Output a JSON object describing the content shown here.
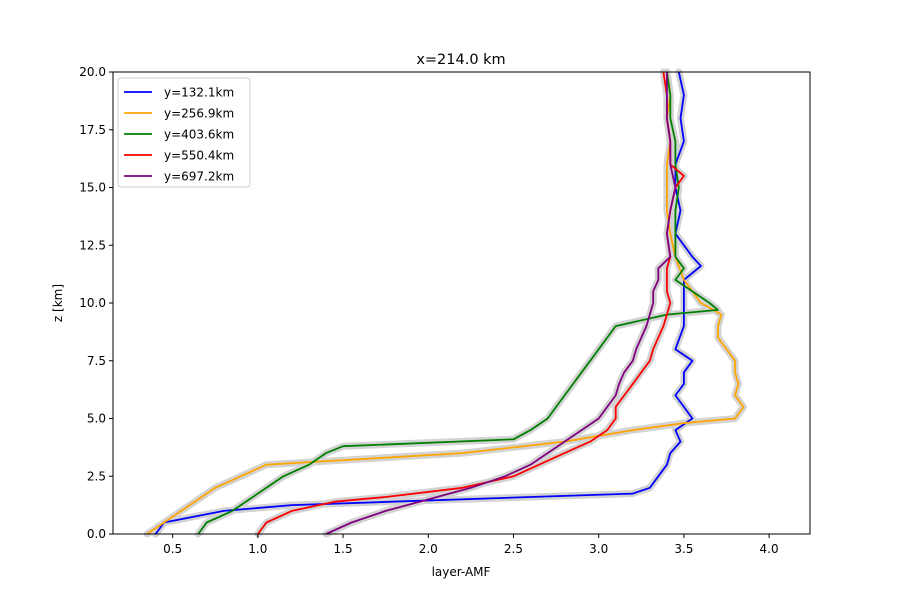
{
  "chart_data": {
    "type": "line",
    "title": "x=214.0 km",
    "xlabel": "layer-AMF",
    "ylabel": "z [km]",
    "xlim": [
      0.15,
      4.24
    ],
    "ylim": [
      0,
      20
    ],
    "xticks": [
      "0.5",
      "1.0",
      "1.5",
      "2.0",
      "2.5",
      "3.0",
      "3.5",
      "4.0"
    ],
    "yticks": [
      "0.0",
      "2.5",
      "5.0",
      "7.5",
      "10.0",
      "12.5",
      "15.0",
      "17.5",
      "20.0"
    ],
    "grid": false,
    "legend_position": "upper-left",
    "uncertainty_band": "lightgray",
    "series": [
      {
        "name": "y=132.1km",
        "color": "#0000ff",
        "z": [
          0.0,
          0.5,
          1.0,
          1.25,
          1.6,
          1.75,
          2.0,
          2.5,
          3.0,
          3.5,
          4.0,
          4.5,
          5.0,
          5.5,
          6.0,
          6.5,
          7.0,
          7.5,
          8.0,
          9.0,
          10.0,
          11.0,
          11.6,
          12.0,
          13.0,
          14.0,
          15.0,
          16.0,
          17.0,
          18.0,
          19.0,
          20.0
        ],
        "amf": [
          0.4,
          0.45,
          0.8,
          1.2,
          2.6,
          3.2,
          3.3,
          3.35,
          3.4,
          3.42,
          3.48,
          3.45,
          3.55,
          3.5,
          3.45,
          3.5,
          3.5,
          3.55,
          3.45,
          3.5,
          3.5,
          3.5,
          3.6,
          3.55,
          3.45,
          3.48,
          3.45,
          3.45,
          3.5,
          3.48,
          3.5,
          3.47
        ]
      },
      {
        "name": "y=256.9km",
        "color": "#ffa500",
        "z": [
          0.0,
          0.5,
          1.0,
          1.5,
          2.0,
          2.5,
          3.0,
          3.5,
          4.0,
          4.5,
          4.8,
          5.0,
          5.5,
          6.0,
          6.5,
          7.0,
          7.5,
          8.0,
          8.5,
          9.0,
          9.5,
          9.8,
          10.0,
          11.0,
          12.0,
          13.0,
          14.0,
          15.0,
          16.0,
          17.0,
          18.0,
          19.0,
          20.0
        ],
        "amf": [
          0.35,
          0.45,
          0.55,
          0.65,
          0.75,
          0.9,
          1.05,
          2.2,
          2.8,
          3.2,
          3.5,
          3.8,
          3.85,
          3.8,
          3.82,
          3.8,
          3.8,
          3.75,
          3.7,
          3.7,
          3.72,
          3.65,
          3.6,
          3.5,
          3.45,
          3.42,
          3.4,
          3.4,
          3.4,
          3.42,
          3.4,
          3.42,
          3.4
        ]
      },
      {
        "name": "y=403.6km",
        "color": "#008000",
        "z": [
          0.0,
          0.5,
          1.0,
          1.5,
          2.0,
          2.5,
          3.0,
          3.5,
          3.8,
          4.1,
          4.3,
          4.5,
          5.0,
          5.5,
          6.0,
          6.5,
          7.0,
          7.5,
          8.0,
          8.5,
          9.0,
          9.5,
          9.7,
          10.0,
          10.5,
          11.0,
          11.5,
          12.0,
          13.0,
          14.0,
          15.0,
          16.0,
          17.0,
          18.0,
          19.0,
          20.0
        ],
        "amf": [
          0.65,
          0.7,
          0.85,
          0.95,
          1.05,
          1.15,
          1.3,
          1.4,
          1.5,
          2.5,
          2.55,
          2.6,
          2.7,
          2.75,
          2.8,
          2.85,
          2.9,
          2.95,
          3.0,
          3.05,
          3.1,
          3.4,
          3.7,
          3.65,
          3.55,
          3.45,
          3.5,
          3.45,
          3.45,
          3.45,
          3.47,
          3.45,
          3.45,
          3.42,
          3.42,
          3.4
        ]
      },
      {
        "name": "y=550.4km",
        "color": "#ff0000",
        "z": [
          0.0,
          0.5,
          1.0,
          1.4,
          1.6,
          2.0,
          2.5,
          3.0,
          3.5,
          4.0,
          4.5,
          5.0,
          5.5,
          6.0,
          6.5,
          7.0,
          7.5,
          8.0,
          8.5,
          9.0,
          9.5,
          10.0,
          10.5,
          11.0,
          11.5,
          12.0,
          13.0,
          14.0,
          15.0,
          15.5,
          16.0,
          17.0,
          18.0,
          19.0,
          20.0
        ],
        "amf": [
          1.0,
          1.05,
          1.2,
          1.45,
          1.75,
          2.2,
          2.5,
          2.65,
          2.8,
          2.95,
          3.05,
          3.1,
          3.1,
          3.15,
          3.2,
          3.25,
          3.3,
          3.32,
          3.35,
          3.38,
          3.4,
          3.42,
          3.4,
          3.4,
          3.4,
          3.42,
          3.4,
          3.42,
          3.45,
          3.5,
          3.42,
          3.42,
          3.4,
          3.4,
          3.38
        ]
      },
      {
        "name": "y=697.2km",
        "color": "#800080",
        "z": [
          0.0,
          0.5,
          1.0,
          1.5,
          2.0,
          2.5,
          3.0,
          3.5,
          4.0,
          4.5,
          5.0,
          5.5,
          6.0,
          6.5,
          7.0,
          7.5,
          8.0,
          8.5,
          9.0,
          9.5,
          10.0,
          10.5,
          11.0,
          11.5,
          12.0,
          13.0,
          14.0,
          15.0,
          16.0,
          17.0,
          18.0,
          19.0,
          20.0
        ],
        "amf": [
          1.4,
          1.55,
          1.75,
          2.0,
          2.25,
          2.45,
          2.6,
          2.7,
          2.8,
          2.9,
          3.0,
          3.05,
          3.1,
          3.12,
          3.15,
          3.2,
          3.22,
          3.25,
          3.28,
          3.3,
          3.32,
          3.32,
          3.35,
          3.35,
          3.42,
          3.4,
          3.42,
          3.45,
          3.42,
          3.42,
          3.4,
          3.4,
          3.4
        ]
      }
    ]
  }
}
